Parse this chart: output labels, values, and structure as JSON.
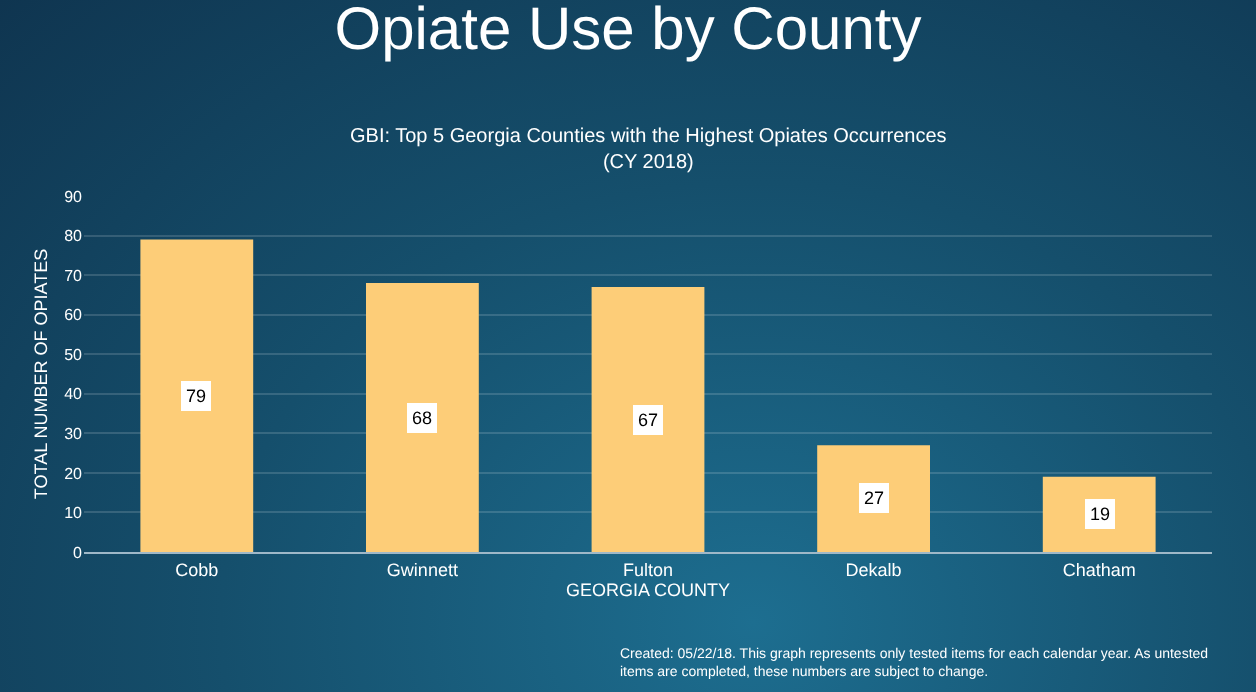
{
  "chart_data": {
    "type": "bar",
    "title": "Opiate Use by County",
    "subtitle": "GBI: Top 5 Georgia Counties with the Highest Opiates Occurrences\n(CY 2018)",
    "xlabel": "GEORGIA COUNTY",
    "ylabel": "TOTAL NUMBER OF OPIATES",
    "categories": [
      "Cobb",
      "Gwinnett",
      "Fulton",
      "Dekalb",
      "Chatham"
    ],
    "values": [
      79,
      68,
      67,
      27,
      19
    ],
    "color": "#fdcd78",
    "ylim": [
      0,
      90
    ],
    "yticks": [
      0,
      10,
      20,
      30,
      40,
      50,
      60,
      70,
      80,
      90
    ],
    "grid": "y",
    "data_labels": true,
    "annotations": [
      "Created: 05/22/18. This graph represents only tested items for each calendar year. As untested\nitems are completed, these numbers are subject to change."
    ]
  }
}
